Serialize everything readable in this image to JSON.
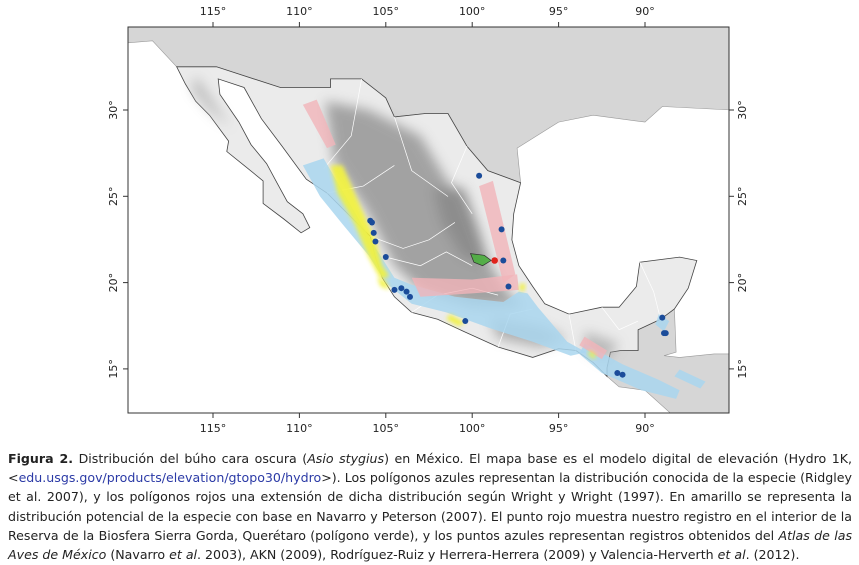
{
  "map": {
    "longitude_labels": [
      "115°",
      "110°",
      "105°",
      "100°",
      "95°",
      "90°"
    ],
    "latitude_labels": [
      "30°",
      "25°",
      "20°",
      "15°"
    ]
  },
  "caption": {
    "label": "Figura 2.",
    "segments": [
      " Distribución del búho cara oscura (",
      "Asio stygius",
      ") en México. El mapa base es el modelo digital de elevación (Hydro 1K, <",
      "edu.usgs.gov/products/elevation/gtopo30/hydro",
      ">). Los polígonos azules representan la distribución conocida de la especie (Ridgley et al. 2007), y los polígonos rojos una extensión de dicha distribución según Wright y Wright (1997). En amarillo se representa la distribución potencial de la especie con base en Navarro y Peterson (2007). El punto rojo muestra nuestro registro en el interior de la Reserva de la Biosfera Sierra Gorda, Querétaro (polígono verde), y los puntos azules representan registros obtenidos del ",
      "Atlas de las Aves de México",
      " (Navarro ",
      "et al",
      ". 2003), AKN (2009), Rodríguez-Ruiz y Herrera-Herrera (2009) y Valencia-Herverth ",
      "et al",
      ". (2012)."
    ]
  }
}
